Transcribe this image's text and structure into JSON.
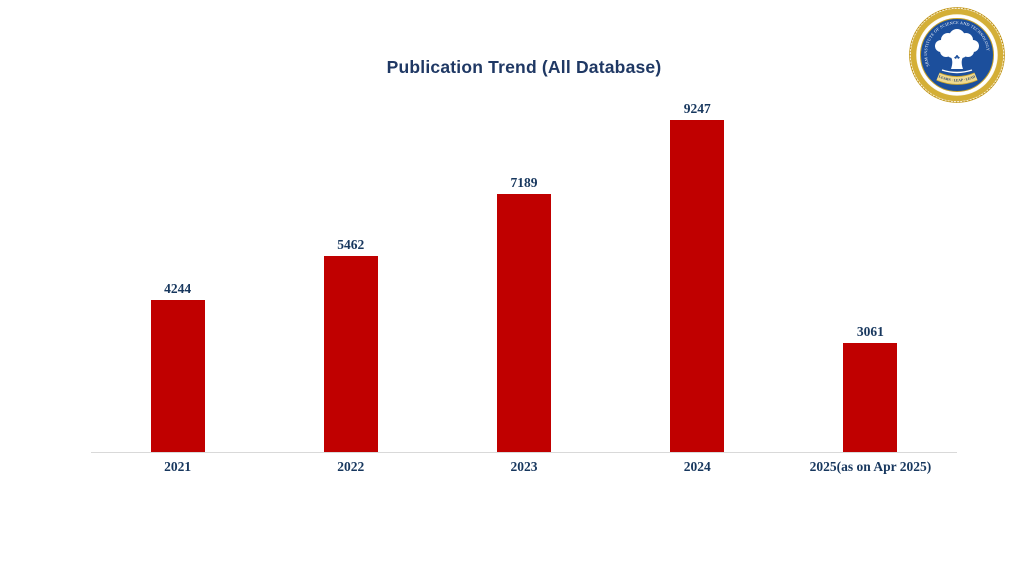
{
  "page": {
    "background": "#FFFFFF"
  },
  "chart_data": {
    "type": "bar",
    "title": "Publication Trend (All Database)",
    "categories": [
      "2021",
      "2022",
      "2023",
      "2024",
      "2025(as on Apr 2025)"
    ],
    "values": [
      4244,
      5462,
      7189,
      9247,
      3061
    ],
    "data_labels": [
      4244,
      5462,
      7189,
      9247,
      3061
    ],
    "xlabel": "",
    "ylabel": "",
    "ylim": [
      0,
      10000
    ],
    "gridlines": false,
    "y_axis_visible": false,
    "legend": "none",
    "bar_color": "#C00000",
    "title_color": "#1F3864",
    "label_color": "#17375E",
    "axis_line_color": "#D9D9D9"
  },
  "logo": {
    "ring_text": "SRM INSTITUTE OF SCIENCE AND TECHNOLOGY",
    "motto": "LEARN · LEAP · LEAD",
    "colors": {
      "gold": "#C9A227",
      "gold_band": "#D4AF37",
      "ribbon": "#EFD98F",
      "blue": "#1C4F9C",
      "white": "#FFFFFF",
      "motto_text": "#1C3B6E"
    }
  }
}
